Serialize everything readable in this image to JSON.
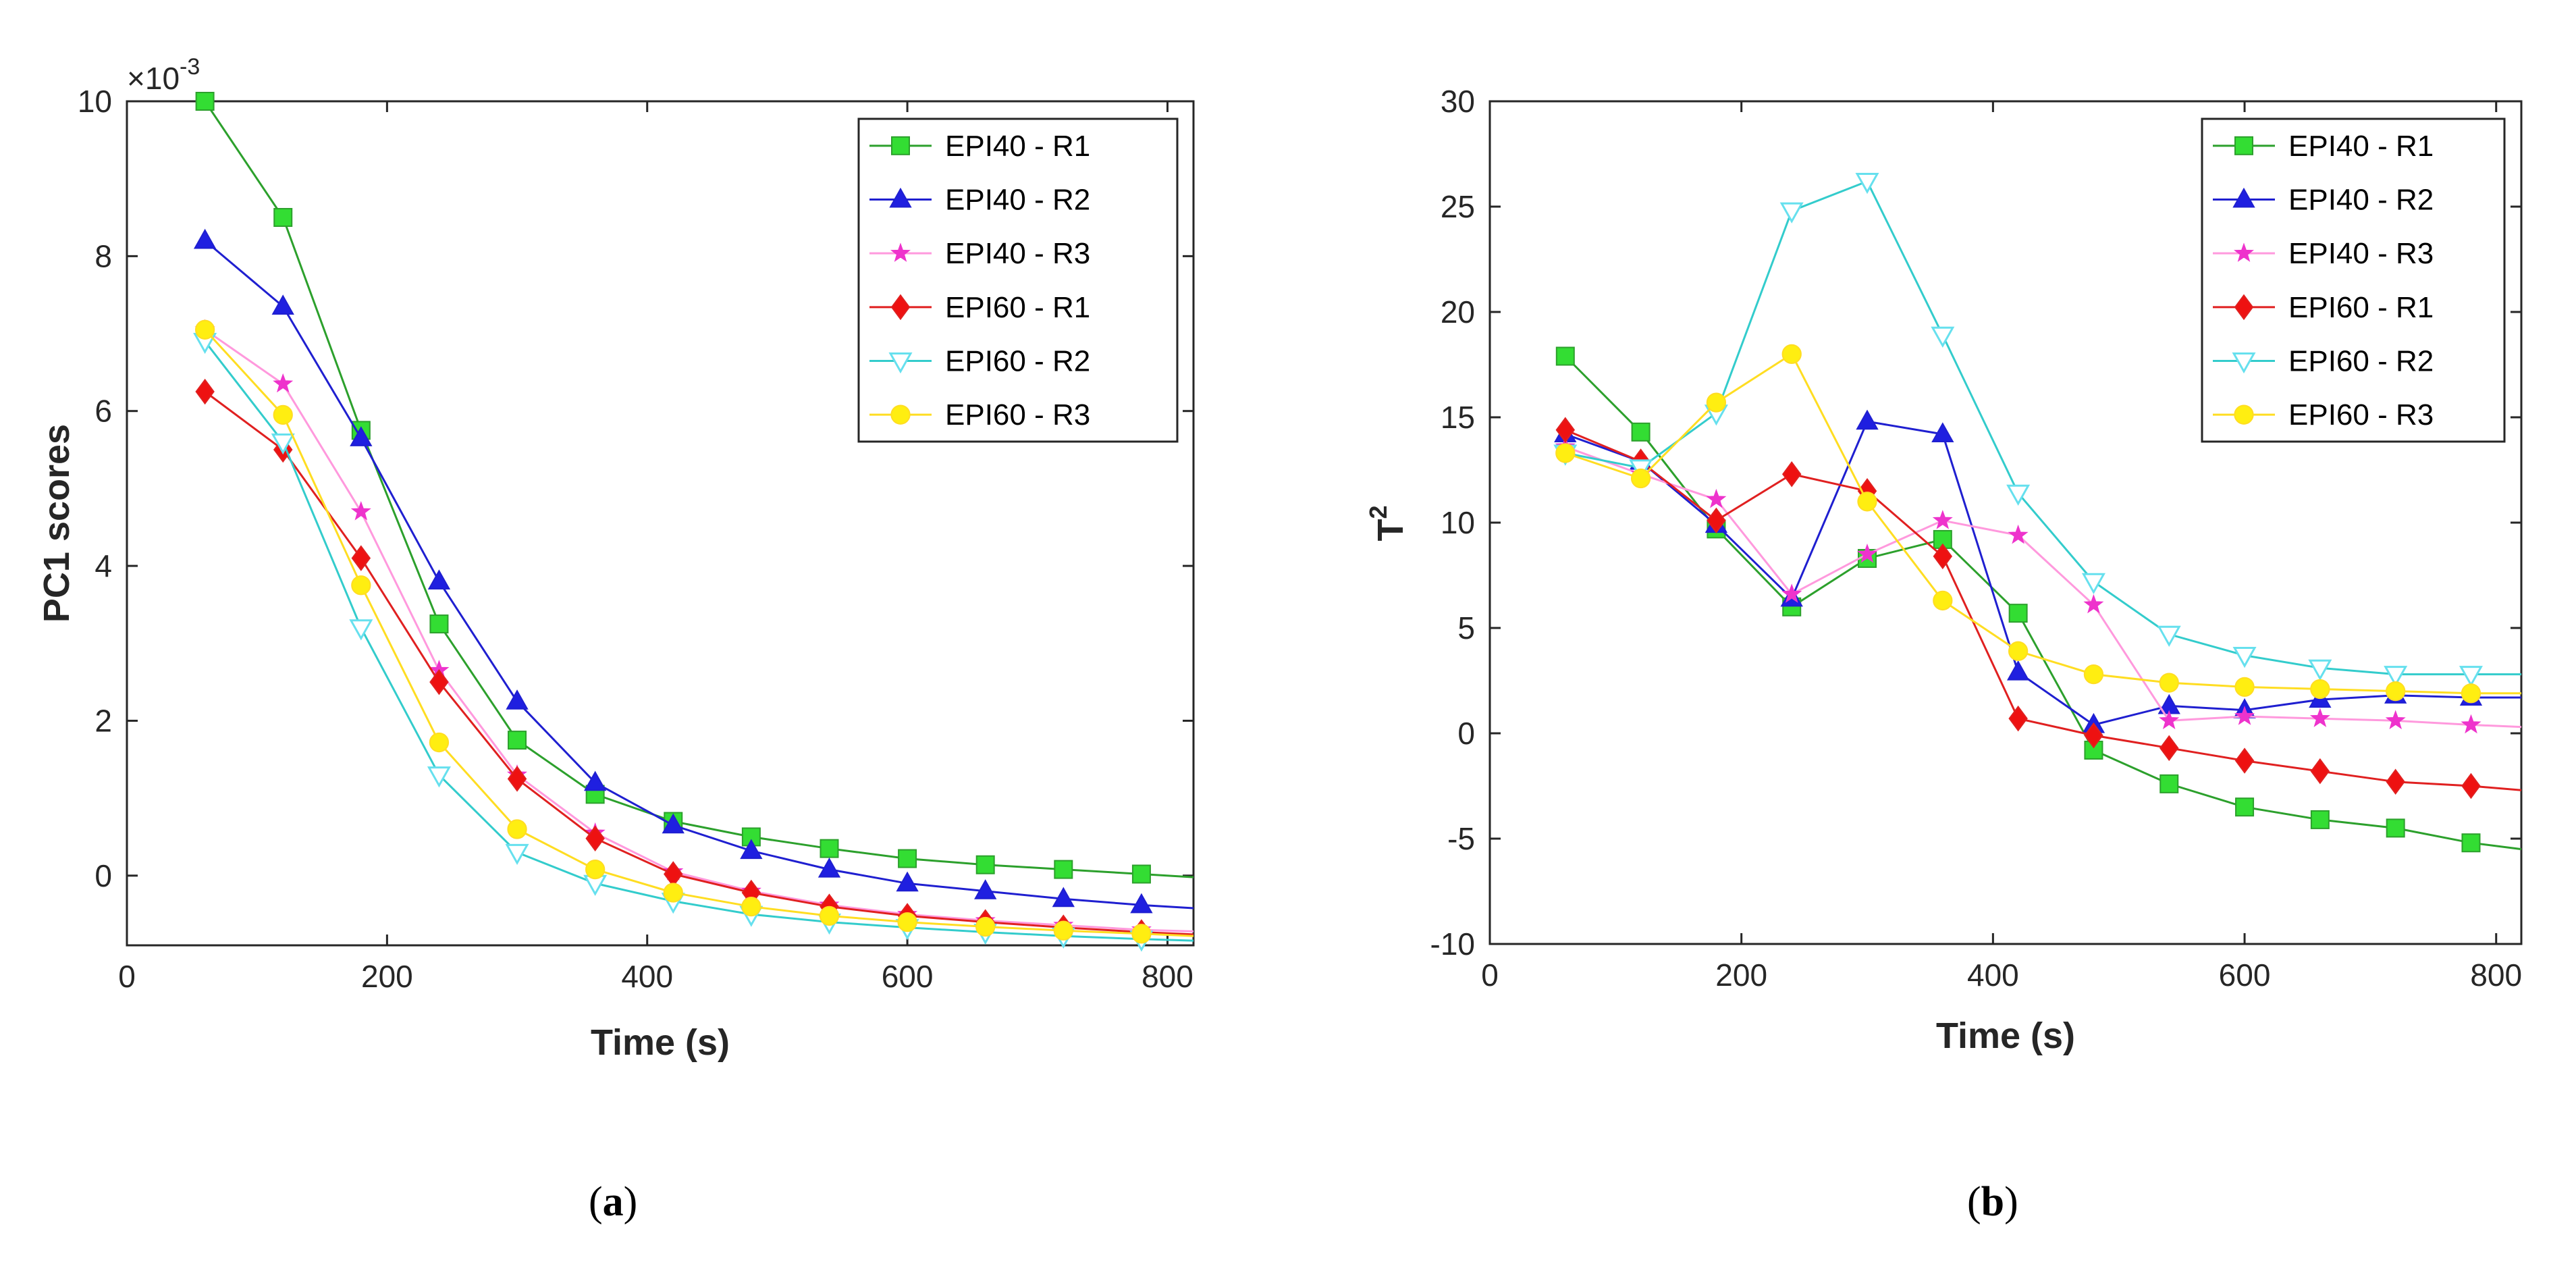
{
  "chart_data": [
    {
      "id": "a",
      "type": "line",
      "caption": "a",
      "xlabel": "Time (s)",
      "ylabel": "PC1 scores",
      "exponent_base": "×10",
      "exponent_power": "-3",
      "xlim": [
        0,
        820
      ],
      "ylim": [
        -0.9,
        10
      ],
      "xticks": [
        0,
        200,
        400,
        600,
        800
      ],
      "yticks": [
        0,
        2,
        4,
        6,
        8,
        10
      ],
      "legend_position": "top-right",
      "x": [
        60,
        120,
        180,
        240,
        300,
        360,
        420,
        480,
        540,
        600,
        660,
        720,
        780
      ],
      "series": [
        {
          "name": "EPI40 - R1",
          "color": "#2ca02c",
          "marker": "square",
          "marker_color": "#33dd33",
          "values": [
            10.0,
            8.5,
            5.75,
            3.25,
            1.75,
            1.05,
            0.7,
            0.5,
            0.35,
            0.22,
            0.14,
            0.08,
            0.02
          ],
          "end": -0.02
        },
        {
          "name": "EPI40 - R2",
          "color": "#1f1fd0",
          "marker": "triangle-up",
          "marker_color": "#1f1fe0",
          "values": [
            8.2,
            7.35,
            5.65,
            3.8,
            2.25,
            1.2,
            0.65,
            0.32,
            0.08,
            -0.1,
            -0.2,
            -0.3,
            -0.38
          ],
          "end": -0.42
        },
        {
          "name": "EPI40 - R3",
          "color": "#ff99dd",
          "marker": "star",
          "marker_color": "#ee33cc",
          "values": [
            7.05,
            6.35,
            4.7,
            2.65,
            1.3,
            0.55,
            0.05,
            -0.2,
            -0.38,
            -0.5,
            -0.58,
            -0.64,
            -0.7
          ],
          "end": -0.72
        },
        {
          "name": "EPI60 - R1",
          "color": "#e02020",
          "marker": "diamond",
          "marker_color": "#ee1111",
          "values": [
            6.25,
            5.5,
            4.1,
            2.5,
            1.25,
            0.48,
            0.02,
            -0.22,
            -0.4,
            -0.52,
            -0.6,
            -0.67,
            -0.73
          ],
          "end": -0.76
        },
        {
          "name": "EPI60 - R2",
          "color": "#33cccc",
          "marker": "triangle-down",
          "marker_color": "#66e0ee",
          "values": [
            6.9,
            5.6,
            3.2,
            1.3,
            0.3,
            -0.1,
            -0.33,
            -0.5,
            -0.6,
            -0.67,
            -0.73,
            -0.78,
            -0.82
          ],
          "end": -0.84
        },
        {
          "name": "EPI60 - R3",
          "color": "#ffdd22",
          "marker": "circle",
          "marker_color": "#ffee11",
          "values": [
            7.05,
            5.95,
            3.75,
            1.72,
            0.6,
            0.08,
            -0.22,
            -0.4,
            -0.52,
            -0.6,
            -0.66,
            -0.71,
            -0.75
          ],
          "end": -0.78
        }
      ]
    },
    {
      "id": "b",
      "type": "line",
      "caption": "b",
      "xlabel": "Time (s)",
      "ylabel_base": "T",
      "ylabel_sup": "2",
      "xlim": [
        0,
        820
      ],
      "ylim": [
        -10,
        30
      ],
      "xticks": [
        0,
        200,
        400,
        600,
        800
      ],
      "yticks": [
        -10,
        -5,
        0,
        5,
        10,
        15,
        20,
        25,
        30
      ],
      "legend_position": "top-right",
      "x": [
        60,
        120,
        180,
        240,
        300,
        360,
        420,
        480,
        540,
        600,
        660,
        720,
        780
      ],
      "series": [
        {
          "name": "EPI40 - R1",
          "color": "#2ca02c",
          "marker": "square",
          "marker_color": "#33dd33",
          "values": [
            17.9,
            14.3,
            9.7,
            6.0,
            8.3,
            9.2,
            5.7,
            -0.8,
            -2.4,
            -3.5,
            -4.1,
            -4.5,
            -5.2
          ],
          "end": -5.5
        },
        {
          "name": "EPI40 - R2",
          "color": "#1f1fd0",
          "marker": "triangle-up",
          "marker_color": "#1f1fe0",
          "values": [
            14.2,
            12.9,
            9.9,
            6.4,
            14.8,
            14.2,
            2.9,
            0.4,
            1.3,
            1.1,
            1.6,
            1.8,
            1.7
          ],
          "end": 1.7
        },
        {
          "name": "EPI40 - R3",
          "color": "#ff99dd",
          "marker": "star",
          "marker_color": "#ee33cc",
          "values": [
            13.6,
            12.3,
            11.1,
            6.6,
            8.5,
            10.1,
            9.4,
            6.1,
            0.6,
            0.8,
            0.7,
            0.6,
            0.4
          ],
          "end": 0.3
        },
        {
          "name": "EPI60 - R1",
          "color": "#e02020",
          "marker": "diamond",
          "marker_color": "#ee1111",
          "values": [
            14.4,
            12.9,
            10.1,
            12.3,
            11.5,
            8.4,
            0.7,
            -0.1,
            -0.7,
            -1.3,
            -1.8,
            -2.3,
            -2.5
          ],
          "end": -2.7
        },
        {
          "name": "EPI60 - R2",
          "color": "#33cccc",
          "marker": "triangle-down",
          "marker_color": "#66e0ee",
          "values": [
            13.3,
            12.6,
            15.2,
            24.8,
            26.2,
            18.9,
            11.4,
            7.2,
            4.7,
            3.7,
            3.1,
            2.8,
            2.8
          ],
          "end": 2.8
        },
        {
          "name": "EPI60 - R3",
          "color": "#ffdd22",
          "marker": "circle",
          "marker_color": "#ffee11",
          "values": [
            13.3,
            12.1,
            15.7,
            18.0,
            11.0,
            6.3,
            3.9,
            2.8,
            2.4,
            2.2,
            2.1,
            2.0,
            1.9
          ],
          "end": 1.9
        }
      ]
    }
  ]
}
